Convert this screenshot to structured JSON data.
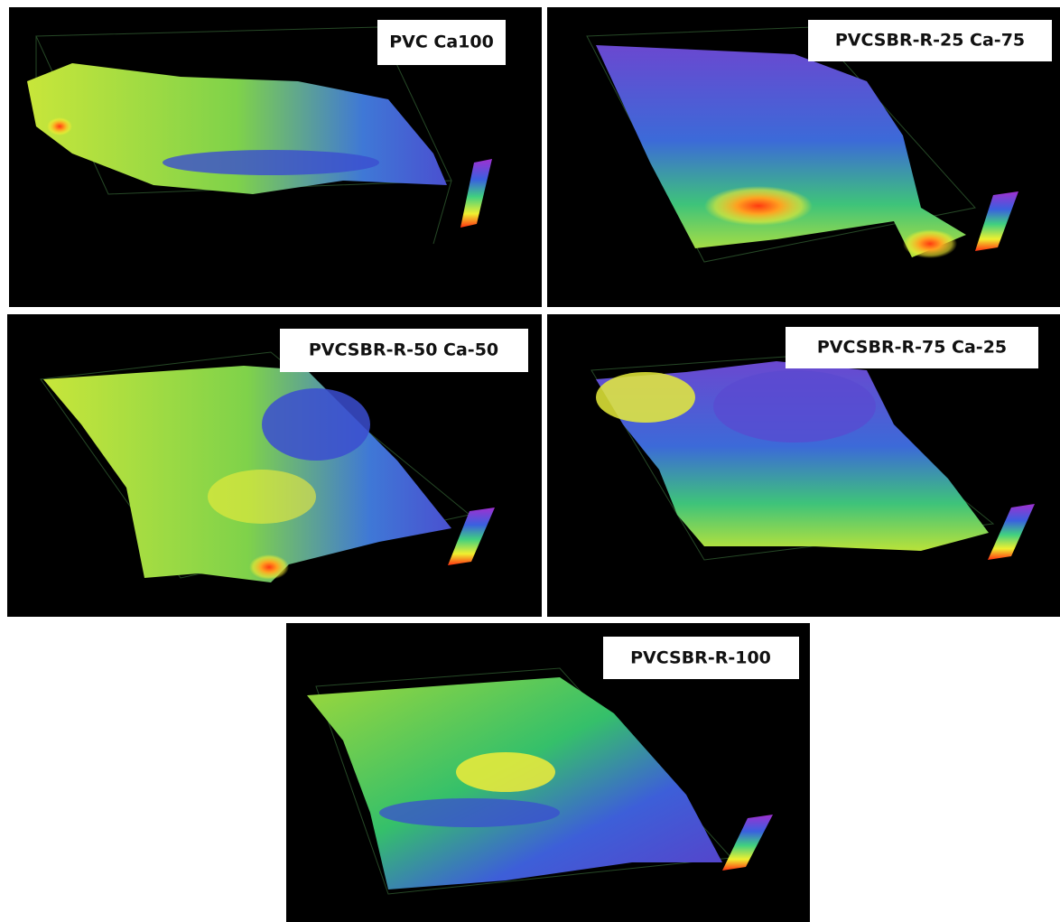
{
  "panels": [
    {
      "label": "PVC Ca100"
    },
    {
      "label": "PVCSBR-R-25 Ca-75"
    },
    {
      "label": "PVCSBR-R-50 Ca-50"
    },
    {
      "label": "PVCSBR-R-75 Ca-25"
    },
    {
      "label": "PVCSBR-R-100"
    }
  ]
}
